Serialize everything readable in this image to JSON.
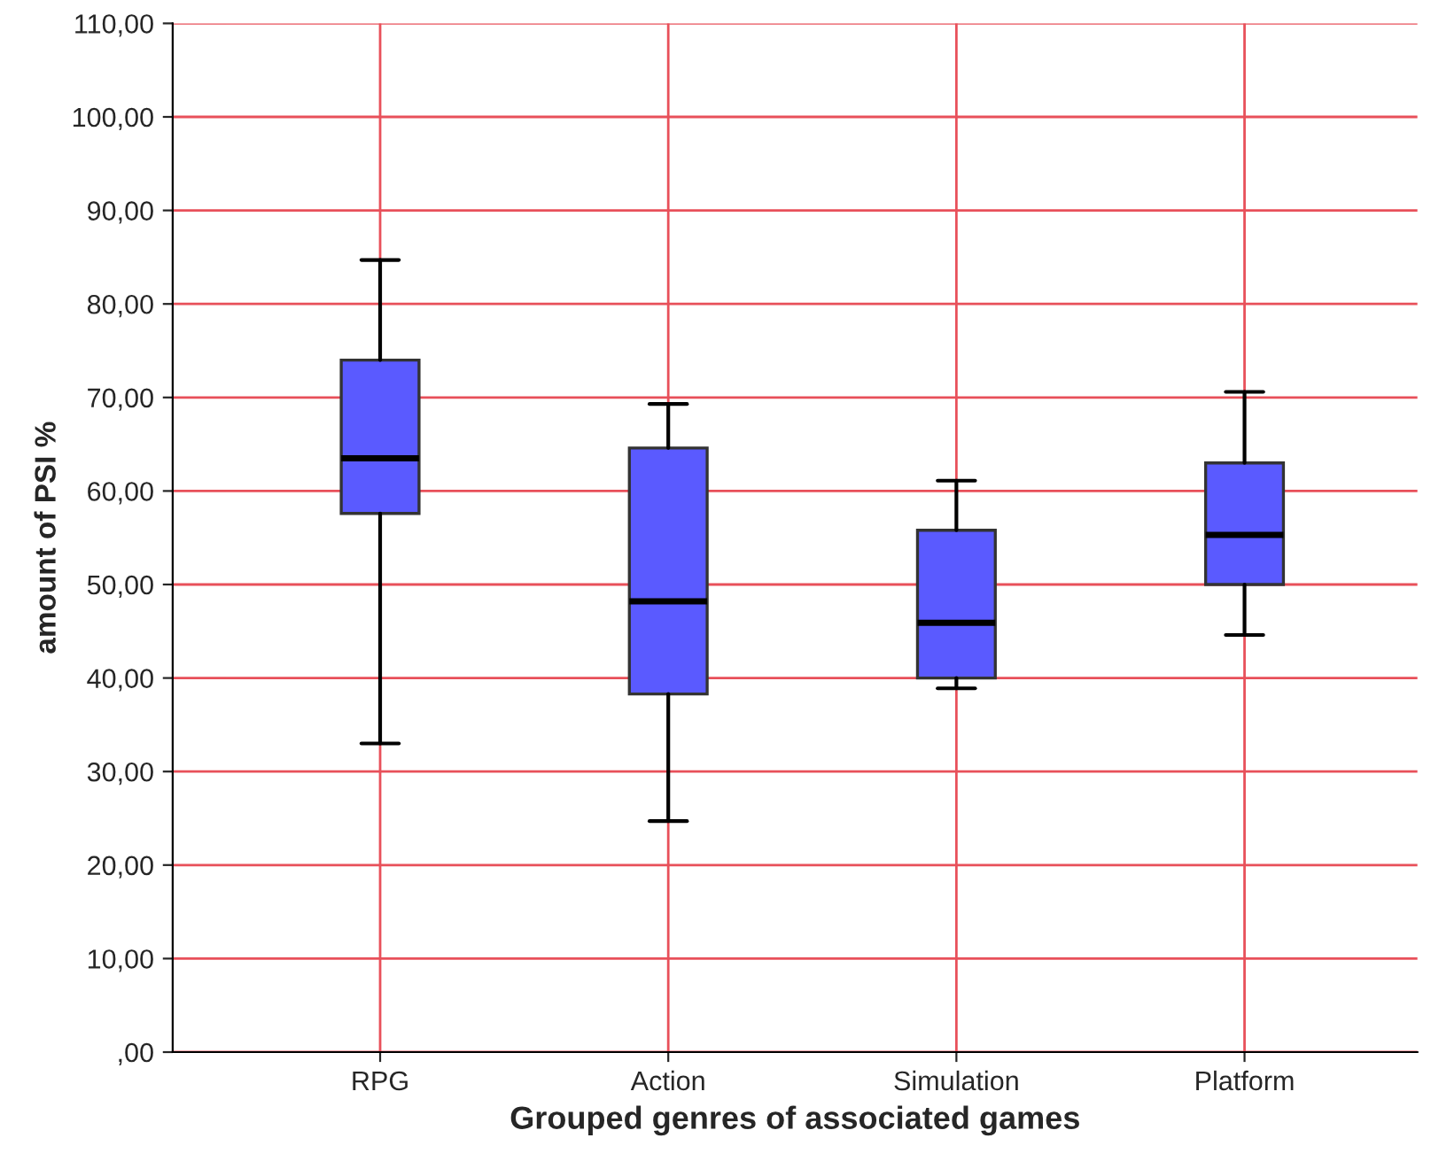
{
  "chart_data": {
    "type": "box",
    "xlabel": "Grouped genres of associated games",
    "ylabel": "amount of PSI %",
    "categories": [
      "RPG",
      "Action",
      "Simulation",
      "Platform"
    ],
    "series": [
      {
        "color": "#5a5aff",
        "boxes": [
          {
            "low": 33,
            "q1": 57.6,
            "median": 63.5,
            "q3": 74,
            "high": 84.7
          },
          {
            "low": 24.7,
            "q1": 38.3,
            "median": 48.2,
            "q3": 64.6,
            "high": 69.3
          },
          {
            "low": 38.9,
            "q1": 40,
            "median": 45.9,
            "q3": 55.8,
            "high": 61.1
          },
          {
            "low": 44.6,
            "q1": 50,
            "median": 55.3,
            "q3": 63,
            "high": 70.6
          }
        ]
      }
    ],
    "ylim": [
      0,
      110
    ],
    "yticks": [
      {
        "value": 0,
        "label": ",00"
      },
      {
        "value": 10,
        "label": "10,00"
      },
      {
        "value": 20,
        "label": "20,00"
      },
      {
        "value": 30,
        "label": "30,00"
      },
      {
        "value": 40,
        "label": "40,00"
      },
      {
        "value": 50,
        "label": "50,00"
      },
      {
        "value": 60,
        "label": "60,00"
      },
      {
        "value": 70,
        "label": "70,00"
      },
      {
        "value": 80,
        "label": "80,00"
      },
      {
        "value": 90,
        "label": "90,00"
      },
      {
        "value": 100,
        "label": "100,00"
      },
      {
        "value": 110,
        "label": "110,00"
      }
    ],
    "grid": true
  }
}
